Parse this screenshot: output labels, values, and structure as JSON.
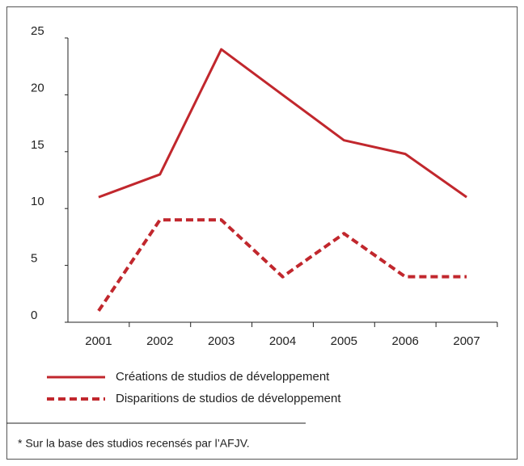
{
  "chart_data": {
    "type": "line",
    "categories": [
      "2001",
      "2002",
      "2003",
      "2004",
      "2005",
      "2006",
      "2007"
    ],
    "series": [
      {
        "name": "Créations de studios de développement",
        "color": "#c1272d",
        "line_style": "solid",
        "values": [
          11,
          13,
          24,
          20,
          16,
          14.8,
          11
        ]
      },
      {
        "name": "Disparitions de studios de développement",
        "color": "#c1272d",
        "line_style": "dashed",
        "values": [
          1,
          9,
          9,
          4,
          7.8,
          4,
          4
        ]
      }
    ],
    "ylim": [
      0,
      25
    ],
    "yticks": [
      0,
      5,
      10,
      15,
      20,
      25
    ],
    "grid": false,
    "legend": "bottom",
    "footnote": "* Sur la base des studios recensés par l’AFJV."
  }
}
